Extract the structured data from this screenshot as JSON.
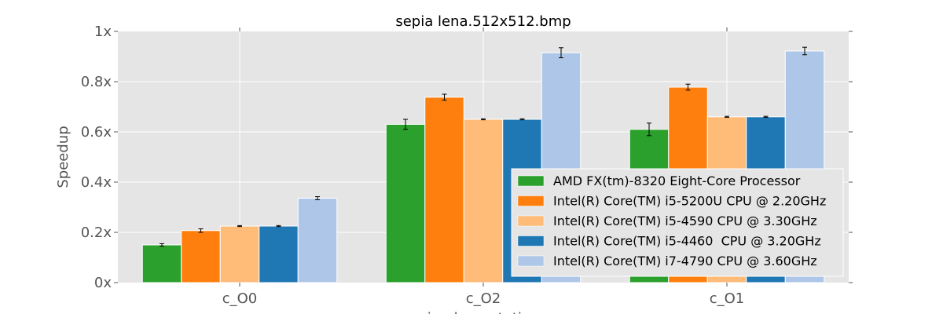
{
  "chart_data": {
    "type": "bar",
    "title": "sepia lena.512x512.bmp",
    "ylabel": "Speedup",
    "xlabel": "implementation",
    "ylim": [
      0,
      1.0
    ],
    "yticks": [
      "0x",
      "0.2x",
      "0.4x",
      "0.6x",
      "0.8x",
      "1x"
    ],
    "categories": [
      "c_O0",
      "c_O2",
      "c_O1"
    ],
    "grid": true,
    "legend_position": "lower-right",
    "series": [
      {
        "name": "AMD FX(tm)-8320 Eight-Core Processor",
        "color": "#2ca02c",
        "values": [
          0.15,
          0.63,
          0.61
        ],
        "errors": [
          0.005,
          0.02,
          0.025
        ]
      },
      {
        "name": "Intel(R) Core(TM) i5-5200U CPU @ 2.20GHz",
        "color": "#ff7f0e",
        "values": [
          0.207,
          0.738,
          0.778
        ],
        "errors": [
          0.007,
          0.012,
          0.012
        ]
      },
      {
        "name": "Intel(R) Core(TM) i5-4590 CPU @ 3.30GHz",
        "color": "#ffbb78",
        "values": [
          0.225,
          0.65,
          0.66
        ],
        "errors": [
          0.002,
          0.002,
          0.002
        ]
      },
      {
        "name": "Intel(R) Core(TM) i5-4460  CPU @ 3.20GHz",
        "color": "#1f77b4",
        "values": [
          0.225,
          0.65,
          0.66
        ],
        "errors": [
          0.002,
          0.002,
          0.002
        ]
      },
      {
        "name": "Intel(R) Core(TM) i7-4790 CPU @ 3.60GHz",
        "color": "#aec7e8",
        "values": [
          0.336,
          0.915,
          0.922
        ],
        "errors": [
          0.006,
          0.02,
          0.015
        ]
      }
    ]
  }
}
